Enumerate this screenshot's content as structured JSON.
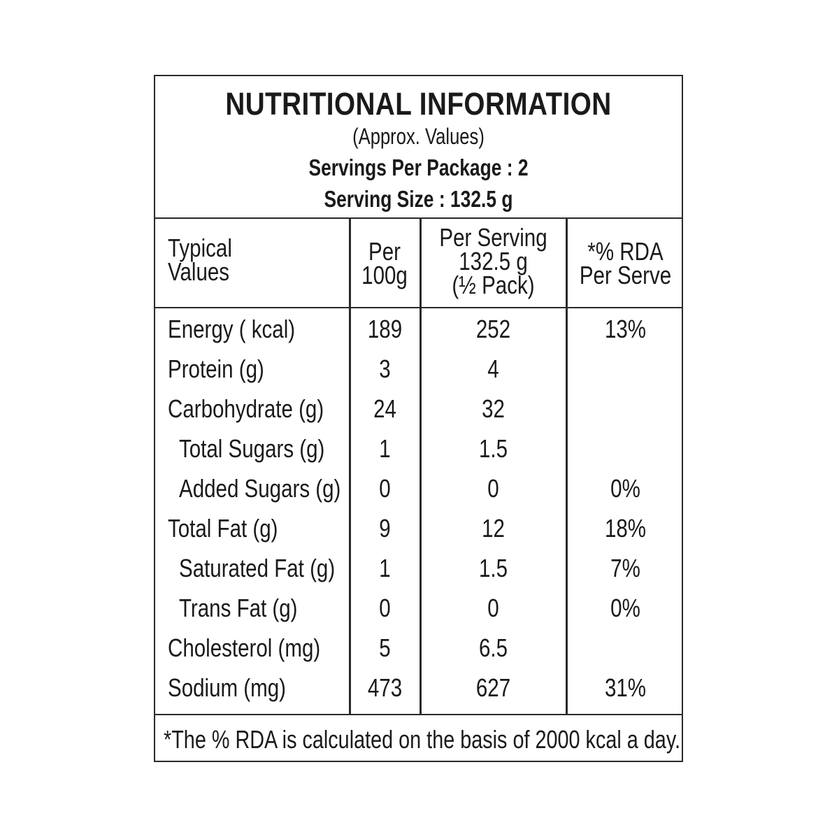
{
  "header": {
    "title": "NUTRITIONAL INFORMATION",
    "approx": "(Approx. Values)",
    "servings": "Servings Per Package : 2",
    "serving_size": "Serving Size : 132.5 g"
  },
  "columns": {
    "typical_line1": "Typical",
    "typical_line2": "Values",
    "per100_line1": "Per",
    "per100_line2": "100g",
    "serving_line1": "Per Serving",
    "serving_line2": "132.5 g",
    "serving_line3": "(½ Pack)",
    "rda_line1": "*% RDA",
    "rda_line2": "Per Serve"
  },
  "rows": [
    {
      "label": "Energy ( kcal)",
      "per100": "189",
      "serving": "252",
      "rda": "13%"
    },
    {
      "label": "Protein (g)",
      "per100": "3",
      "serving": "4",
      "rda": ""
    },
    {
      "label": "Carbohydrate (g)",
      "per100": "24",
      "serving": "32",
      "rda": ""
    },
    {
      "label": "Total Sugars (g)",
      "per100": "1",
      "serving": "1.5",
      "rda": ""
    },
    {
      "label": "Added Sugars (g)",
      "per100": "0",
      "serving": "0",
      "rda": "0%"
    },
    {
      "label": "Total Fat (g)",
      "per100": "9",
      "serving": "12",
      "rda": "18%"
    },
    {
      "label": "Saturated Fat (g)",
      "per100": "1",
      "serving": "1.5",
      "rda": "7%"
    },
    {
      "label": "Trans Fat (g)",
      "per100": "0",
      "serving": "0",
      "rda": "0%"
    },
    {
      "label": "Cholesterol (mg)",
      "per100": "5",
      "serving": "6.5",
      "rda": ""
    },
    {
      "label": "Sodium (mg)",
      "per100": "473",
      "serving": "627",
      "rda": "31%"
    }
  ],
  "footnote": "*The % RDA is calculated on the basis of 2000 kcal a day."
}
